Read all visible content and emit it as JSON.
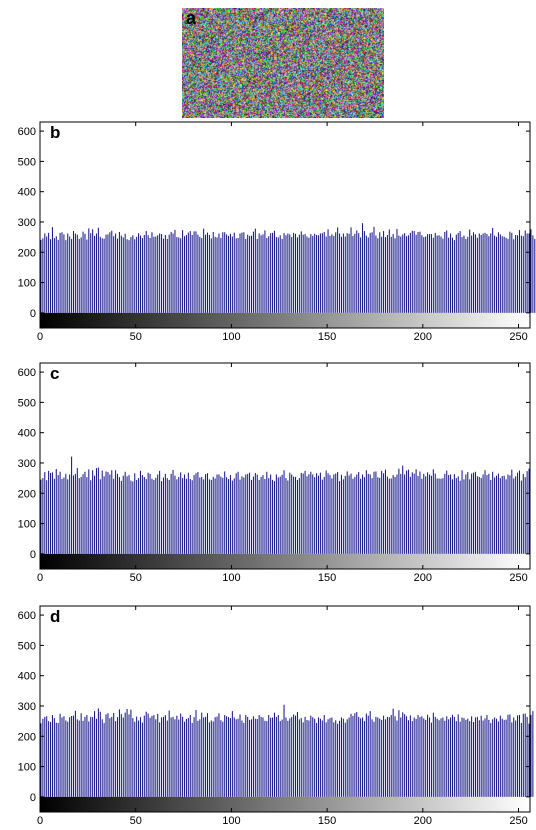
{
  "figure": {
    "image_panel": {
      "label": "a",
      "description_icon": "noise-image-icon"
    }
  },
  "colors": {
    "bar": "#1a1a8c",
    "axis": "#000000",
    "background": "#ffffff"
  },
  "chart_data": [
    {
      "type": "bar",
      "panel": "b",
      "title": "",
      "xlabel": "",
      "ylabel": "",
      "xlim": [
        0,
        256
      ],
      "ylim": [
        -50,
        630
      ],
      "xticks": [
        0,
        50,
        100,
        150,
        200,
        250
      ],
      "yticks": [
        0,
        100,
        200,
        300,
        400,
        500,
        600
      ],
      "colorbar": "grayscale gradient 0–255 below baseline",
      "x": "0..255 (pixel intensity)",
      "values": [
        241,
        246,
        262,
        252,
        264,
        243,
        283,
        247,
        253,
        241,
        264,
        266,
        259,
        240,
        262,
        252,
        244,
        270,
        262,
        258,
        244,
        249,
        268,
        261,
        242,
        279,
        263,
        276,
        254,
        262,
        281,
        251,
        246,
        245,
        258,
        259,
        266,
        271,
        253,
        262,
        245,
        267,
        255,
        249,
        261,
        243,
        240,
        250,
        256,
        243,
        251,
        263,
        255,
        247,
        257,
        270,
        256,
        247,
        266,
        251,
        252,
        256,
        262,
        260,
        245,
        257,
        244,
        258,
        267,
        262,
        274,
        250,
        249,
        246,
        273,
        253,
        257,
        265,
        270,
        257,
        269,
        269,
        258,
        251,
        247,
        278,
        258,
        265,
        257,
        246,
        267,
        251,
        249,
        262,
        247,
        266,
        266,
        259,
        254,
        261,
        252,
        265,
        246,
        247,
        262,
        265,
        266,
        244,
        258,
        254,
        255,
        268,
        278,
        244,
        262,
        256,
        259,
        272,
        247,
        253,
        263,
        264,
        271,
        250,
        249,
        256,
        244,
        263,
        256,
        262,
        259,
        250,
        264,
        261,
        249,
        258,
        269,
        258,
        260,
        252,
        248,
        260,
        254,
        261,
        257,
        256,
        262,
        263,
        267,
        252,
        276,
        254,
        259,
        254,
        266,
        282,
        262,
        251,
        262,
        252,
        263,
        261,
        282,
        254,
        261,
        272,
        263,
        249,
        296,
        270,
        255,
        249,
        264,
        266,
        284,
        255,
        246,
        266,
        251,
        270,
        250,
        257,
        275,
        251,
        260,
        246,
        277,
        255,
        252,
        259,
        263,
        253,
        256,
        264,
        271,
        270,
        258,
        267,
        268,
        256,
        250,
        252,
        260,
        260,
        260,
        248,
        264,
        255,
        256,
        252,
        245,
        267,
        272,
        248,
        262,
        248,
        240,
        258,
        264,
        270,
        250,
        255,
        244,
        251,
        275,
        255,
        266,
        259,
        248,
        262,
        257,
        262,
        264,
        260,
        253,
        262,
        280,
        255,
        251,
        266,
        259,
        253,
        251,
        248,
        244,
        268,
        264,
        243,
        257,
        256,
        273,
        255,
        253,
        272,
        262,
        262,
        276,
        256,
        244,
        283
      ]
    },
    {
      "type": "bar",
      "panel": "c",
      "title": "",
      "xlabel": "",
      "ylabel": "",
      "xlim": [
        0,
        256
      ],
      "ylim": [
        -50,
        630
      ],
      "xticks": [
        0,
        50,
        100,
        150,
        200,
        250
      ],
      "yticks": [
        0,
        100,
        200,
        300,
        400,
        500,
        600
      ],
      "colorbar": "grayscale gradient 0–255 below baseline",
      "x": "0..255 (pixel intensity)",
      "values": [
        245,
        250,
        270,
        243,
        274,
        267,
        269,
        248,
        280,
        260,
        271,
        247,
        252,
        264,
        246,
        262,
        321,
        259,
        264,
        283,
        250,
        254,
        263,
        271,
        253,
        279,
        243,
        276,
        258,
        283,
        285,
        246,
        275,
        256,
        272,
        270,
        262,
        276,
        248,
        276,
        264,
        253,
        241,
        258,
        271,
        256,
        260,
        242,
        239,
        266,
        244,
        250,
        274,
        260,
        254,
        247,
        268,
        264,
        248,
        244,
        251,
        262,
        274,
        240,
        252,
        264,
        250,
        244,
        264,
        277,
        258,
        246,
        254,
        269,
        250,
        262,
        248,
        268,
        247,
        243,
        260,
        266,
        270,
        252,
        254,
        246,
        263,
        266,
        246,
        244,
        254,
        249,
        262,
        262,
        255,
        251,
        272,
        253,
        247,
        260,
        242,
        249,
        266,
        271,
        245,
        256,
        252,
        262,
        264,
        268,
        244,
        255,
        267,
        262,
        244,
        254,
        260,
        247,
        271,
        250,
        262,
        244,
        240,
        262,
        252,
        255,
        261,
        276,
        250,
        242,
        268,
        262,
        255,
        254,
        244,
        250,
        267,
        265,
        274,
        256,
        263,
        271,
        262,
        253,
        266,
        258,
        268,
        245,
        254,
        275,
        266,
        260,
        249,
        262,
        265,
        270,
        240,
        261,
        246,
        257,
        272,
        259,
        265,
        248,
        254,
        262,
        270,
        248,
        262,
        253,
        276,
        264,
        262,
        250,
        271,
        272,
        253,
        251,
        274,
        266,
        278,
        255,
        248,
        249,
        260,
        254,
        262,
        281,
        264,
        291,
        262,
        275,
        278,
        254,
        269,
        265,
        279,
        257,
        272,
        248,
        264,
        256,
        269,
        262,
        258,
        279,
        265,
        249,
        249,
        248,
        250,
        264,
        275,
        260,
        262,
        246,
        263,
        250,
        256,
        241,
        276,
        246,
        262,
        270,
        246,
        265,
        268,
        271,
        256,
        254,
        250,
        262,
        276,
        260,
        264,
        244,
        271,
        252,
        258,
        265,
        250,
        257,
        258,
        246,
        262,
        259,
        278,
        249,
        256,
        268,
        275,
        242,
        264,
        253,
        273,
        281
      ]
    },
    {
      "type": "bar",
      "panel": "d",
      "title": "",
      "xlabel": "",
      "ylabel": "",
      "xlim": [
        0,
        256
      ],
      "ylim": [
        -50,
        630
      ],
      "xticks": [
        0,
        50,
        100,
        150,
        200,
        250
      ],
      "yticks": [
        0,
        100,
        200,
        300,
        400,
        500,
        600
      ],
      "colorbar": "grayscale gradient 0–255 below baseline",
      "x": "0..255 (pixel intensity)",
      "values": [
        243,
        258,
        264,
        266,
        250,
        247,
        270,
        260,
        245,
        244,
        274,
        262,
        266,
        252,
        248,
        263,
        267,
        268,
        284,
        256,
        252,
        276,
        251,
        264,
        270,
        249,
        264,
        263,
        283,
        258,
        292,
        281,
        256,
        244,
        272,
        276,
        260,
        264,
        277,
        250,
        263,
        289,
        273,
        262,
        278,
        290,
        272,
        288,
        260,
        248,
        265,
        252,
        263,
        245,
        268,
        281,
        275,
        261,
        267,
        270,
        256,
        274,
        246,
        262,
        264,
        270,
        252,
        285,
        262,
        264,
        256,
        268,
        255,
        275,
        264,
        248,
        257,
        260,
        270,
        244,
        263,
        287,
        251,
        256,
        278,
        262,
        264,
        276,
        246,
        252,
        249,
        263,
        265,
        276,
        253,
        248,
        270,
        266,
        263,
        260,
        283,
        262,
        256,
        258,
        272,
        252,
        244,
        270,
        264,
        254,
        256,
        266,
        258,
        257,
        270,
        264,
        262,
        251,
        250,
        270,
        261,
        262,
        278,
        264,
        270,
        250,
        255,
        304,
        262,
        251,
        259,
        264,
        272,
        268,
        280,
        256,
        260,
        246,
        264,
        254,
        252,
        268,
        263,
        258,
        244,
        262,
        258,
        252,
        270,
        246,
        256,
        260,
        262,
        246,
        253,
        241,
        251,
        262,
        258,
        245,
        256,
        262,
        274,
        267,
        276,
        280,
        264,
        259,
        262,
        250,
        275,
        268,
        283,
        256,
        248,
        264,
        262,
        258,
        254,
        268,
        256,
        264,
        263,
        270,
        291,
        266,
        252,
        286,
        262,
        279,
        273,
        266,
        253,
        269,
        250,
        262,
        257,
        270,
        263,
        266,
        259,
        254,
        271,
        262,
        245,
        278,
        264,
        258,
        253,
        259,
        262,
        251,
        266,
        256,
        262,
        271,
        264,
        250,
        272,
        248,
        262,
        260,
        254,
        258,
        250,
        266,
        247,
        262,
        264,
        253,
        268,
        252,
        259,
        270,
        254,
        244,
        256,
        262,
        258,
        249,
        268,
        258,
        254,
        255,
        271,
        272,
        246,
        262,
        252,
        269,
        270,
        244,
        274,
        275,
        264,
        242,
        270,
        283
      ]
    }
  ]
}
